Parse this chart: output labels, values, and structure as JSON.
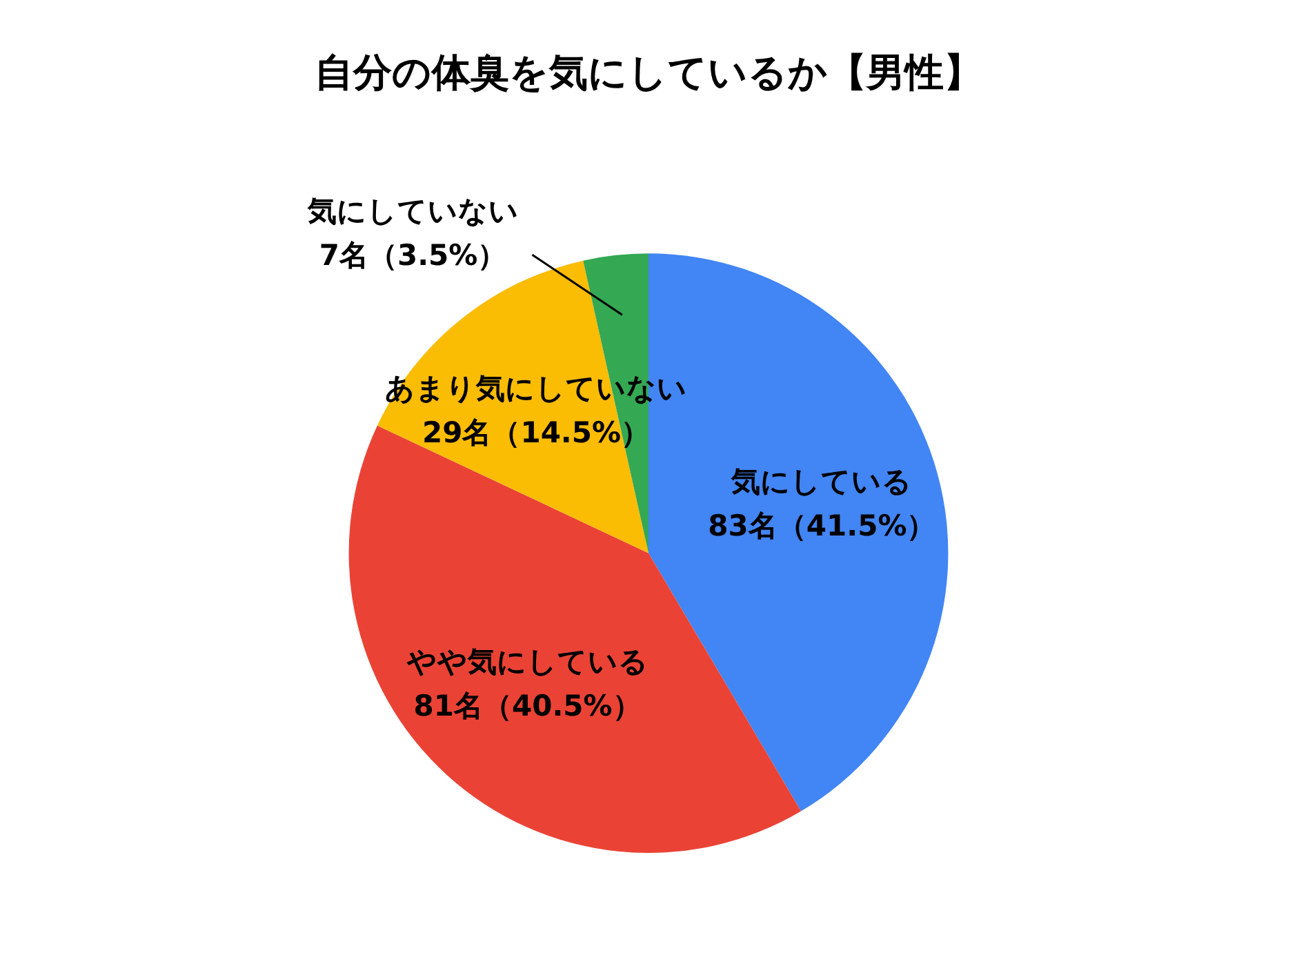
{
  "chart_data": {
    "type": "pie",
    "title": "自分の体臭を気にしているか【男性】",
    "categories": [
      "気にしている",
      "やや気にしている",
      "あまり気にしていない",
      "気にしていない"
    ],
    "values": [
      83,
      81,
      29,
      7
    ],
    "colors": [
      "#4285f4",
      "#ea4335",
      "#fbbc04",
      "#34a853"
    ],
    "value_labels": [
      "83名（41.5%）",
      "81名（40.5%）",
      "29名（14.5%）",
      "7名（3.5%）"
    ],
    "legend": false
  }
}
